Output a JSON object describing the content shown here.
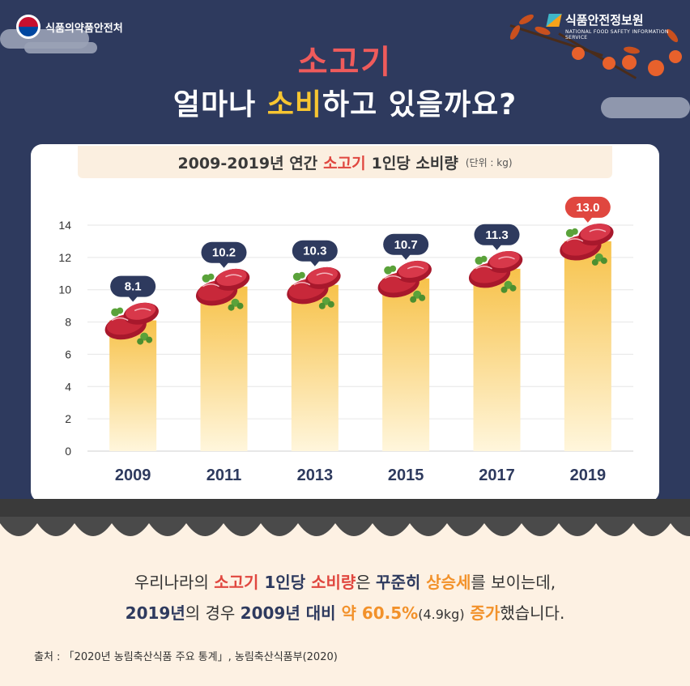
{
  "header": {
    "left_logo": "식품의약품안전처",
    "right_logo": "식품안전정보원",
    "right_logo_sub": "NATIONAL FOOD SAFETY INFORMATION SERVICE"
  },
  "title": {
    "line1": "소고기",
    "line2_a": "얼마나 ",
    "line2_b": "소비",
    "line2_c": "하고 있을까요?"
  },
  "subtitle": {
    "part1": "2009-2019년 연간",
    "part2": "소고기",
    "part3": "1인당 소비량",
    "unit": "(단위 : kg)"
  },
  "chart_data": {
    "type": "bar",
    "categories": [
      "2009",
      "2011",
      "2013",
      "2015",
      "2017",
      "2019"
    ],
    "values": [
      8.1,
      10.2,
      10.3,
      10.7,
      11.3,
      13.0
    ],
    "value_labels": [
      "8.1",
      "10.2",
      "10.3",
      "10.7",
      "11.3",
      "13.0"
    ],
    "yticks": [
      "0",
      "2",
      "4",
      "6",
      "8",
      "10",
      "12",
      "14"
    ],
    "ylim": [
      0,
      14
    ],
    "grid": true,
    "colors": {
      "bar_top": "#f7c24a",
      "bar_bottom": "#fff6dc",
      "label_badge": "#2e3a5e",
      "highlight_badge": "#e0473f",
      "meat": "#c8283a",
      "herb": "#5aa23a"
    }
  },
  "bottom": {
    "l1_a": "우리나라의 ",
    "l1_b": "소고기",
    "l1_c": " 1인당",
    "l1_d": " 소비량",
    "l1_e": "은 ",
    "l1_f": "꾸준히",
    "l1_g": " 상승세",
    "l1_h": "를 보이는데,",
    "l2_a": "2019년",
    "l2_b": "의 경우 ",
    "l2_c": "2009년 대비",
    "l2_d": " 약 60.5%",
    "l2_e": "(4.9kg)",
    "l2_f": " 증가",
    "l2_g": "했습니다."
  },
  "source": "출처 : 「2020년 농림축산식품 주요 통계」, 농림축산식품부(2020)"
}
